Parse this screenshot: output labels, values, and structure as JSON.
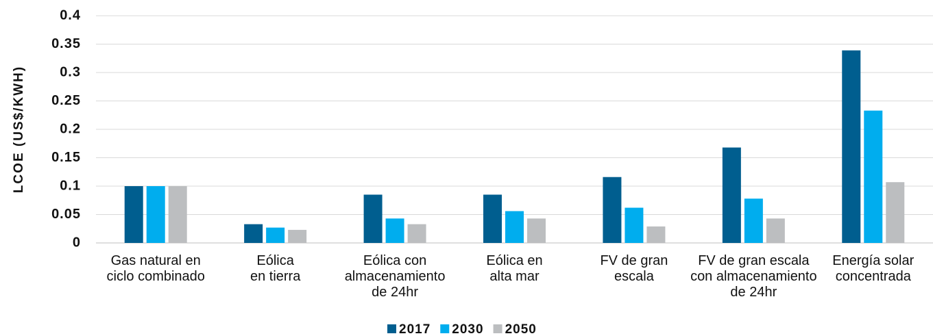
{
  "chart_data": {
    "type": "bar",
    "y_label": "LCOE (US$/KWH)",
    "categories": [
      [
        "Gas natural en",
        "ciclo combinado"
      ],
      [
        "Eólica",
        "en tierra"
      ],
      [
        "Eólica con",
        "almacenamiento",
        "de 24hr"
      ],
      [
        "Eólica en",
        "alta mar"
      ],
      [
        "FV de gran",
        "escala"
      ],
      [
        "FV de gran escala",
        "con almacenamiento",
        "de 24hr"
      ],
      [
        "Energía solar",
        "concentrada"
      ]
    ],
    "series": [
      {
        "name": "2017",
        "color": "#005e8f",
        "values": [
          0.1,
          0.033,
          0.085,
          0.085,
          0.116,
          0.168,
          0.339
        ]
      },
      {
        "name": "2030",
        "color": "#00adee",
        "values": [
          0.1,
          0.027,
          0.043,
          0.056,
          0.062,
          0.078,
          0.233
        ]
      },
      {
        "name": "2050",
        "color": "#bcbec0",
        "values": [
          0.1,
          0.023,
          0.033,
          0.043,
          0.029,
          0.043,
          0.107
        ]
      }
    ],
    "ylim": [
      0,
      0.4
    ],
    "yticks": [
      0,
      0.05,
      0.1,
      0.15,
      0.2,
      0.25,
      0.3,
      0.35,
      0.4
    ],
    "grid": true,
    "legend": "bottom"
  }
}
